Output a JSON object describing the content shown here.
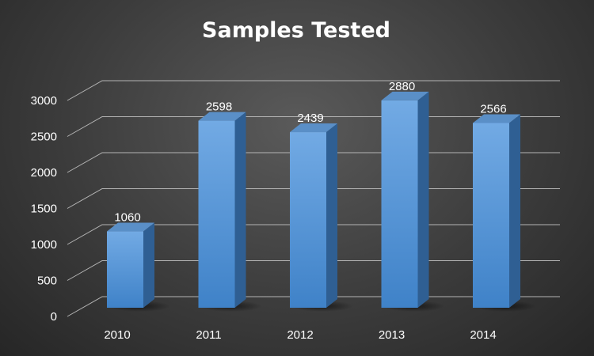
{
  "chart_data": {
    "type": "bar",
    "title": "Samples Tested",
    "categories": [
      "2010",
      "2011",
      "2012",
      "2013",
      "2014"
    ],
    "values": [
      1060,
      2598,
      2439,
      2880,
      2566
    ],
    "data_labels": [
      "1060",
      "2598",
      "2439",
      "2880",
      "2566"
    ],
    "ylim": [
      0,
      3000
    ],
    "yticks": [
      "0",
      "500",
      "1000",
      "1500",
      "2000",
      "2500",
      "3000"
    ],
    "xlabel": "",
    "ylabel": "",
    "grid": true,
    "legend": "none",
    "style": "3d-column"
  },
  "colors": {
    "bar_front_top": "#72aae4",
    "bar_front_bottom": "#3f82c8",
    "bar_side": "#2f5f93",
    "bar_top": "#5a8fc7",
    "grid": "#b4b4b4",
    "text": "#ffffff"
  }
}
